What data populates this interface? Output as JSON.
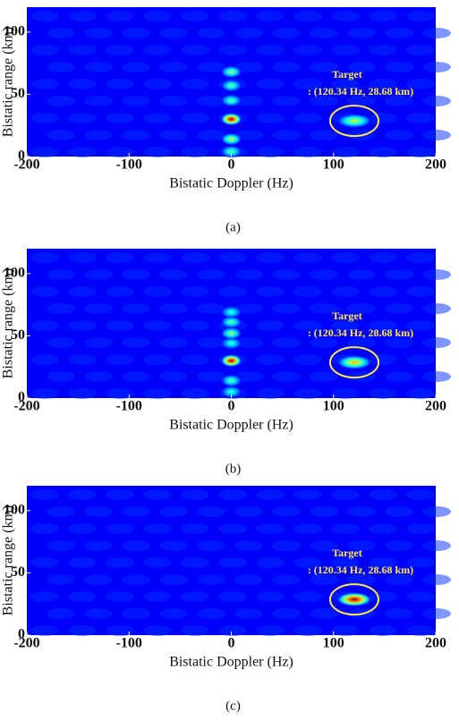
{
  "chart_data": [
    {
      "type": "heatmap",
      "panel_label": "(a)",
      "xlabel": "Bistatic Doppler (Hz)",
      "ylabel": "Bistatic range (km)",
      "annotation": [
        "Target",
        ": (120.34 Hz, 28.68 km)"
      ],
      "xlim": [
        -200,
        200
      ],
      "ylim": [
        0,
        120
      ],
      "xticks": [
        -200,
        -100,
        0,
        100,
        200
      ],
      "yticks": [
        0,
        50,
        100
      ],
      "x": [
        0,
        0,
        0,
        0,
        0,
        0,
        120.34
      ],
      "values": [
        30,
        14,
        4,
        45,
        57,
        68,
        28.68
      ],
      "z": [
        1.0,
        0.6,
        0.5,
        0.5,
        0.5,
        0.55,
        0.6
      ]
    },
    {
      "type": "heatmap",
      "panel_label": "(b)",
      "xlabel": "Bistatic Doppler (Hz)",
      "ylabel": "Bistatic range (km)",
      "annotation": [
        "Target",
        ": (120.34 Hz, 28.68 km)"
      ],
      "xlim": [
        -200,
        200
      ],
      "ylim": [
        0,
        120
      ],
      "xticks": [
        -200,
        -100,
        0,
        100,
        200
      ],
      "yticks": [
        0,
        50,
        100
      ],
      "x": [
        0,
        0,
        0,
        0,
        0,
        0,
        0,
        120.34
      ],
      "values": [
        30,
        14,
        5,
        44,
        52,
        61,
        69,
        28.68
      ],
      "z": [
        1.0,
        0.5,
        0.45,
        0.45,
        0.55,
        0.5,
        0.45,
        0.7
      ]
    },
    {
      "type": "heatmap",
      "panel_label": "(c)",
      "xlabel": "Bistatic Doppler (Hz)",
      "ylabel": "Bistatic range (km)",
      "annotation": [
        "Target",
        ": (120.34 Hz, 28.68 km)"
      ],
      "xlim": [
        -200,
        200
      ],
      "ylim": [
        0,
        120
      ],
      "xticks": [
        -200,
        -100,
        0,
        100,
        200
      ],
      "yticks": [
        0,
        50,
        100
      ],
      "x": [
        120.34
      ],
      "values": [
        28.68
      ],
      "z": [
        1.0
      ]
    }
  ]
}
